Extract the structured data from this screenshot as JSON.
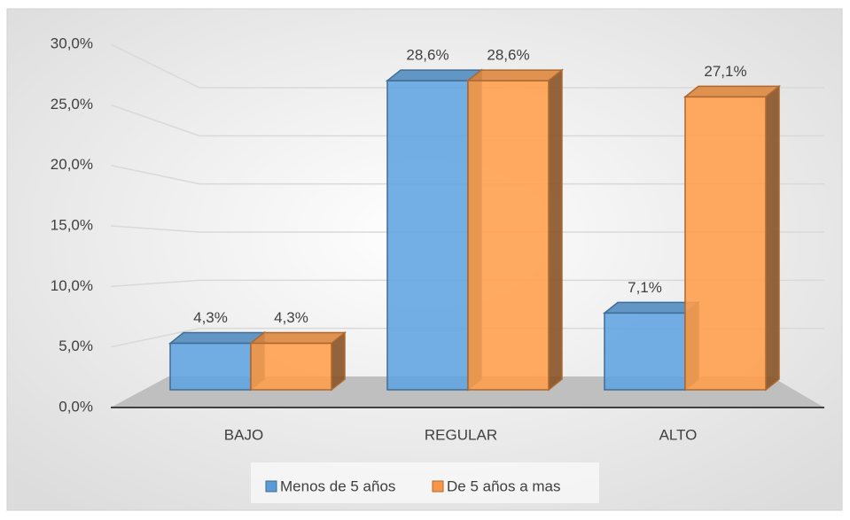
{
  "chart_data": {
    "type": "bar3d",
    "categories": [
      "BAJO",
      "REGULAR",
      "ALTO"
    ],
    "series": [
      {
        "name": "Menos de 5 años",
        "color": "#5b9bd5",
        "values": [
          4.3,
          28.6,
          7.1
        ],
        "value_labels": [
          "4,3%",
          "28,6%",
          "7,1%"
        ]
      },
      {
        "name": "De 5 años a mas",
        "color": "#f79646",
        "values": [
          4.3,
          28.6,
          27.1
        ],
        "value_labels": [
          "4,3%",
          "28,6%",
          "27,1%"
        ]
      }
    ],
    "ylim": [
      0,
      30
    ],
    "yticks": [
      {
        "value": 0,
        "label": "0,0%"
      },
      {
        "value": 5,
        "label": "5,0%"
      },
      {
        "value": 10,
        "label": "10,0%"
      },
      {
        "value": 15,
        "label": "15,0%"
      },
      {
        "value": 20,
        "label": "20,0%"
      },
      {
        "value": 25,
        "label": "25,0%"
      },
      {
        "value": 30,
        "label": "30,0%"
      }
    ],
    "grid": true,
    "legend": "bottom"
  }
}
